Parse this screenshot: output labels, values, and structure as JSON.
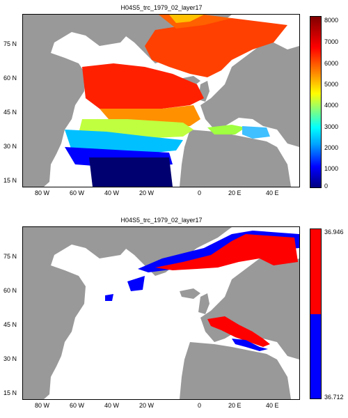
{
  "panels": [
    {
      "title": "H04S5_trc_1979_02_layer17",
      "lat_ticks": [
        "75 N",
        "60 N",
        "45 N",
        "30 N",
        "15 N"
      ],
      "lon_ticks": [
        "80 W",
        "60 W",
        "40 W",
        "20 W",
        "0",
        "20 E",
        "40 E"
      ],
      "colorbar": {
        "type": "continuous",
        "ticks": [
          "8000",
          "7000",
          "6000",
          "5000",
          "4000",
          "3000",
          "2000",
          "1000",
          "0"
        ]
      }
    },
    {
      "title": "H04S5_trc_1979_02_layer17",
      "lat_ticks": [
        "75 N",
        "60 N",
        "45 N",
        "30 N",
        "15 N"
      ],
      "lon_ticks": [
        "80 W",
        "60 W",
        "40 W",
        "20 W",
        "0",
        "20 E",
        "40 E"
      ],
      "colorbar": {
        "type": "discrete",
        "ticks": [
          "36.946",
          "36.712"
        ],
        "colors": [
          "#ff0000",
          "#0000ff"
        ]
      }
    }
  ],
  "colors": {
    "land": "#999999",
    "ocean_empty": "#ffffff",
    "jet": [
      "#000080",
      "#0000ff",
      "#00a0ff",
      "#00ffff",
      "#80ff80",
      "#ffff00",
      "#ff8000",
      "#ff0000",
      "#800000"
    ]
  }
}
